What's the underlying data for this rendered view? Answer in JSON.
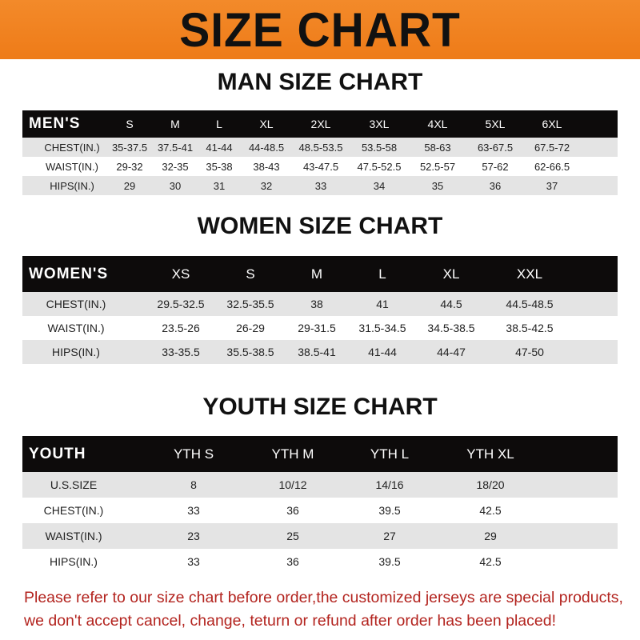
{
  "banner_title": "SIZE CHART",
  "colors": {
    "banner": "#ee7b18",
    "header_row": "#0d0b0b",
    "stripe": "#e4e4e4",
    "note": "#b3241f"
  },
  "men": {
    "title": "MAN SIZE CHART",
    "header": [
      "MEN'S",
      "S",
      "M",
      "L",
      "XL",
      "2XL",
      "3XL",
      "4XL",
      "5XL",
      "6XL"
    ],
    "rows": [
      [
        "CHEST(IN.)",
        "35-37.5",
        "37.5-41",
        "41-44",
        "44-48.5",
        "48.5-53.5",
        "53.5-58",
        "58-63",
        "63-67.5",
        "67.5-72"
      ],
      [
        "WAIST(IN.)",
        "29-32",
        "32-35",
        "35-38",
        "38-43",
        "43-47.5",
        "47.5-52.5",
        "52.5-57",
        "57-62",
        "62-66.5"
      ],
      [
        "HIPS(IN.)",
        "29",
        "30",
        "31",
        "32",
        "33",
        "34",
        "35",
        "36",
        "37"
      ]
    ]
  },
  "women": {
    "title": "WOMEN SIZE CHART",
    "header": [
      "WOMEN'S",
      "XS",
      "S",
      "M",
      "L",
      "XL",
      "XXL"
    ],
    "rows": [
      [
        "CHEST(IN.)",
        "29.5-32.5",
        "32.5-35.5",
        "38",
        "41",
        "44.5",
        "44.5-48.5"
      ],
      [
        "WAIST(IN.)",
        "23.5-26",
        "26-29",
        "29-31.5",
        "31.5-34.5",
        "34.5-38.5",
        "38.5-42.5"
      ],
      [
        "HIPS(IN.)",
        "33-35.5",
        "35.5-38.5",
        "38.5-41",
        "41-44",
        "44-47",
        "47-50"
      ]
    ]
  },
  "youth": {
    "title": "YOUTH SIZE CHART",
    "header": [
      "YOUTH",
      "YTH S",
      "YTH M",
      "YTH L",
      "YTH XL"
    ],
    "rows": [
      [
        "U.S.SIZE",
        "8",
        "10/12",
        "14/16",
        "18/20"
      ],
      [
        "CHEST(IN.)",
        "33",
        "36",
        "39.5",
        "42.5"
      ],
      [
        "WAIST(IN.)",
        "23",
        "25",
        "27",
        "29"
      ],
      [
        "HIPS(IN.)",
        "33",
        "36",
        "39.5",
        "42.5"
      ]
    ]
  },
  "note": {
    "line1": "Please refer to our size chart before order,the customized jerseys are special products,",
    "line2": "we don't accept cancel, change, teturn or refund after order has been placed!"
  }
}
